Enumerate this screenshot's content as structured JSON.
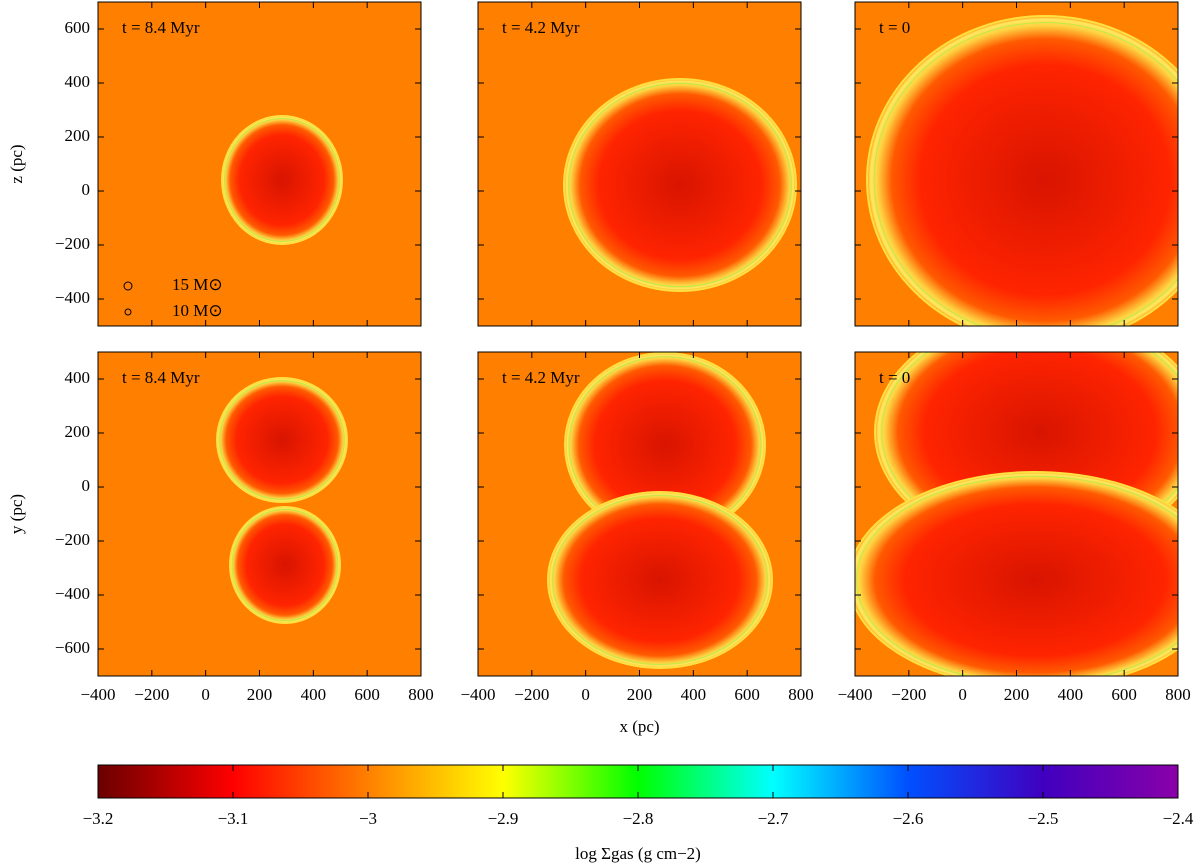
{
  "chart_data": [
    {
      "type": "image",
      "annotation": "t = 8.4 Myr",
      "xlim": [
        -400,
        800
      ],
      "ylim": [
        -500,
        700
      ],
      "xticks": [
        -400,
        -200,
        0,
        200,
        400,
        600,
        800
      ],
      "xtick_labels": false,
      "yticks": [
        {
          "value": -400,
          "label": "−400"
        },
        {
          "value": -200,
          "label": "−200"
        },
        0,
        200,
        400,
        600
      ],
      "ytick_labels": true,
      "ylabel": "z (pc)",
      "legend": [
        "15 M⊙",
        "10 M⊙"
      ]
    },
    {
      "type": "image",
      "annotation": "t = 4.2 Myr",
      "xlim": [
        -400,
        800
      ],
      "ylim": [
        -500,
        700
      ],
      "xticks": [
        -400,
        -200,
        0,
        200,
        400,
        600,
        800
      ],
      "xtick_labels": false,
      "yticks": [
        -400,
        -200,
        0,
        200,
        400,
        600
      ],
      "ytick_labels": false
    },
    {
      "type": "image",
      "annotation": "t = 0",
      "xlim": [
        -400,
        800
      ],
      "ylim": [
        -500,
        700
      ],
      "xticks": [
        -400,
        -200,
        0,
        200,
        400,
        600,
        800
      ],
      "xtick_labels": false,
      "yticks": [
        -400,
        -200,
        0,
        200,
        400,
        600
      ],
      "ytick_labels": false
    },
    {
      "type": "image",
      "annotation": "t = 8.4 Myr",
      "xlim": [
        -400,
        800
      ],
      "ylim": [
        -700,
        500
      ],
      "xticks": [
        {
          "value": -400,
          "label": "−400"
        },
        {
          "value": -200,
          "label": "−200"
        },
        0,
        200,
        400,
        600,
        800
      ],
      "xtick_labels": true,
      "yticks": [
        {
          "value": -600,
          "label": "−600"
        },
        {
          "value": -400,
          "label": "−400"
        },
        {
          "value": -200,
          "label": "−200"
        },
        0,
        200,
        400
      ],
      "ytick_labels": true,
      "ylabel": "y (pc)"
    },
    {
      "type": "image",
      "annotation": "t = 4.2 Myr",
      "xlim": [
        -400,
        800
      ],
      "ylim": [
        -700,
        500
      ],
      "xticks": [
        {
          "value": -400,
          "label": "−400"
        },
        {
          "value": -200,
          "label": "−200"
        },
        0,
        200,
        400,
        600,
        800
      ],
      "xtick_labels": true,
      "yticks": [
        -600,
        -400,
        -200,
        0,
        200,
        400
      ],
      "ytick_labels": false,
      "xlabel": "x (pc)"
    },
    {
      "type": "image",
      "annotation": "t = 0",
      "xlim": [
        -400,
        800
      ],
      "ylim": [
        -700,
        500
      ],
      "xticks": [
        {
          "value": -400,
          "label": "−400"
        },
        {
          "value": -200,
          "label": "−200"
        },
        0,
        200,
        400,
        600,
        800
      ],
      "xtick_labels": true,
      "yticks": [
        -600,
        -400,
        -200,
        0,
        200,
        400
      ],
      "ytick_labels": false
    },
    {
      "type": "colorbar",
      "label": "log Σgas (g cm−2)",
      "xlim": [
        -3.2,
        -2.4
      ],
      "xticks": [
        {
          "value": -3.2,
          "label": "−3.2"
        },
        {
          "value": -3.1,
          "label": "−3.1"
        },
        {
          "value": -3,
          "label": "−3"
        },
        {
          "value": -2.9,
          "label": "−2.9"
        },
        {
          "value": -2.8,
          "label": "−2.8"
        },
        {
          "value": -2.7,
          "label": "−2.7"
        },
        {
          "value": -2.6,
          "label": "−2.6"
        },
        {
          "value": -2.5,
          "label": "−2.5"
        },
        {
          "value": -2.4,
          "label": "−2.4"
        }
      ],
      "colors": [
        "#6a0000",
        "#ff0000",
        "#ff8000",
        "#ffff00",
        "#00ff00",
        "#00ffff",
        "#0050ff",
        "#4000c0",
        "#8a00a8"
      ]
    }
  ]
}
